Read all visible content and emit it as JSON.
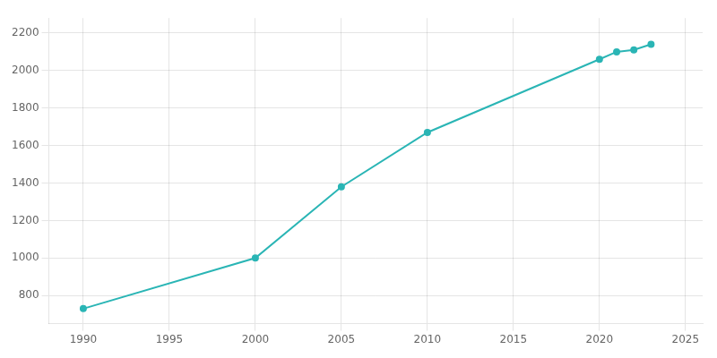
{
  "chart_data": {
    "type": "line",
    "x": [
      1990,
      2000,
      2005,
      2010,
      2020,
      2021,
      2022,
      2023
    ],
    "values": [
      730,
      1000,
      1380,
      1670,
      2060,
      2100,
      2110,
      2140
    ],
    "color": "#2ab5b5",
    "marker": "circle",
    "xlim": [
      1988,
      2026
    ],
    "ylim": [
      650,
      2280
    ],
    "xticks": [
      1990,
      1995,
      2000,
      2005,
      2010,
      2015,
      2020,
      2025
    ],
    "yticks": [
      800,
      1000,
      1200,
      1400,
      1600,
      1800,
      2000,
      2200
    ],
    "grid": true
  }
}
